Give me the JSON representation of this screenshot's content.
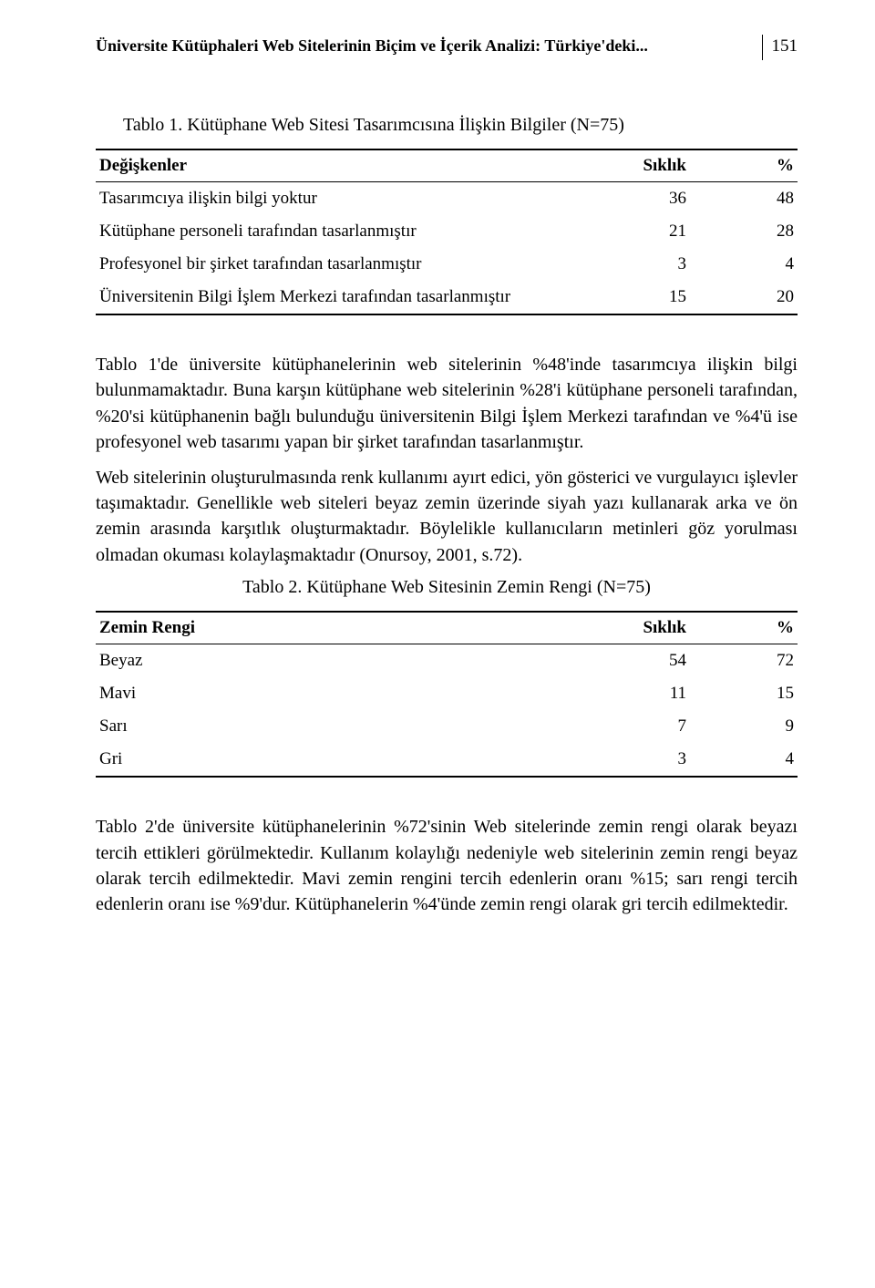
{
  "header": {
    "running_title": "Üniversite Kütüphaleri Web Sitelerinin Biçim ve İçerik Analizi: Türkiye'deki...",
    "page_number": "151"
  },
  "table1": {
    "caption": "Tablo 1. Kütüphane Web Sitesi Tasarımcısına İlişkin Bilgiler (N=75)",
    "columns": [
      "Değişkenler",
      "Sıklık",
      "%"
    ],
    "rows": [
      [
        "Tasarımcıya ilişkin bilgi yoktur",
        "36",
        "48"
      ],
      [
        "Kütüphane personeli tarafından tasarlanmıştır",
        "21",
        "28"
      ],
      [
        "Profesyonel bir şirket tarafından tasarlanmıştır",
        "3",
        "4"
      ],
      [
        "Üniversitenin Bilgi İşlem Merkezi tarafından tasarlanmıştır",
        "15",
        "20"
      ]
    ]
  },
  "para1": "Tablo 1'de üniversite kütüphanelerinin web sitelerinin %48'inde tasarımcıya ilişkin bilgi bulunmamaktadır. Buna karşın kütüphane web sitelerinin %28'i kütüphane personeli tarafından, %20'si kütüphanenin bağlı bulunduğu üniversitenin Bilgi İşlem Merkezi tarafından ve %4'ü ise profesyonel web tasarımı yapan bir şirket tarafından tasarlanmıştır.",
  "para2": "Web sitelerinin oluşturulmasında renk kullanımı ayırt edici, yön gösterici ve vurgulayıcı işlevler taşımaktadır. Genellikle web siteleri beyaz zemin üzerinde siyah yazı kullanarak arka ve ön zemin arasında karşıtlık oluşturmaktadır. Böylelikle kullanıcıların metinleri göz yorulması olmadan okuması kolaylaşmaktadır (Onursoy, 2001, s.72).",
  "table2": {
    "caption": "Tablo 2. Kütüphane Web Sitesinin Zemin Rengi (N=75)",
    "columns": [
      "Zemin Rengi",
      "Sıklık",
      "%"
    ],
    "rows": [
      [
        "Beyaz",
        "54",
        "72"
      ],
      [
        "Mavi",
        "11",
        "15"
      ],
      [
        "Sarı",
        "7",
        "9"
      ],
      [
        "Gri",
        "3",
        "4"
      ]
    ]
  },
  "para3": "Tablo 2'de üniversite kütüphanelerinin %72'sinin Web sitelerinde zemin rengi olarak beyazı tercih ettikleri görülmektedir. Kullanım kolaylığı nedeniyle web sitelerinin zemin rengi beyaz olarak tercih edilmektedir. Mavi zemin rengini tercih edenlerin oranı %15; sarı rengi tercih edenlerin oranı ise %9'dur. Kütüphanelerin %4'ünde zemin rengi olarak gri tercih edilmektedir."
}
